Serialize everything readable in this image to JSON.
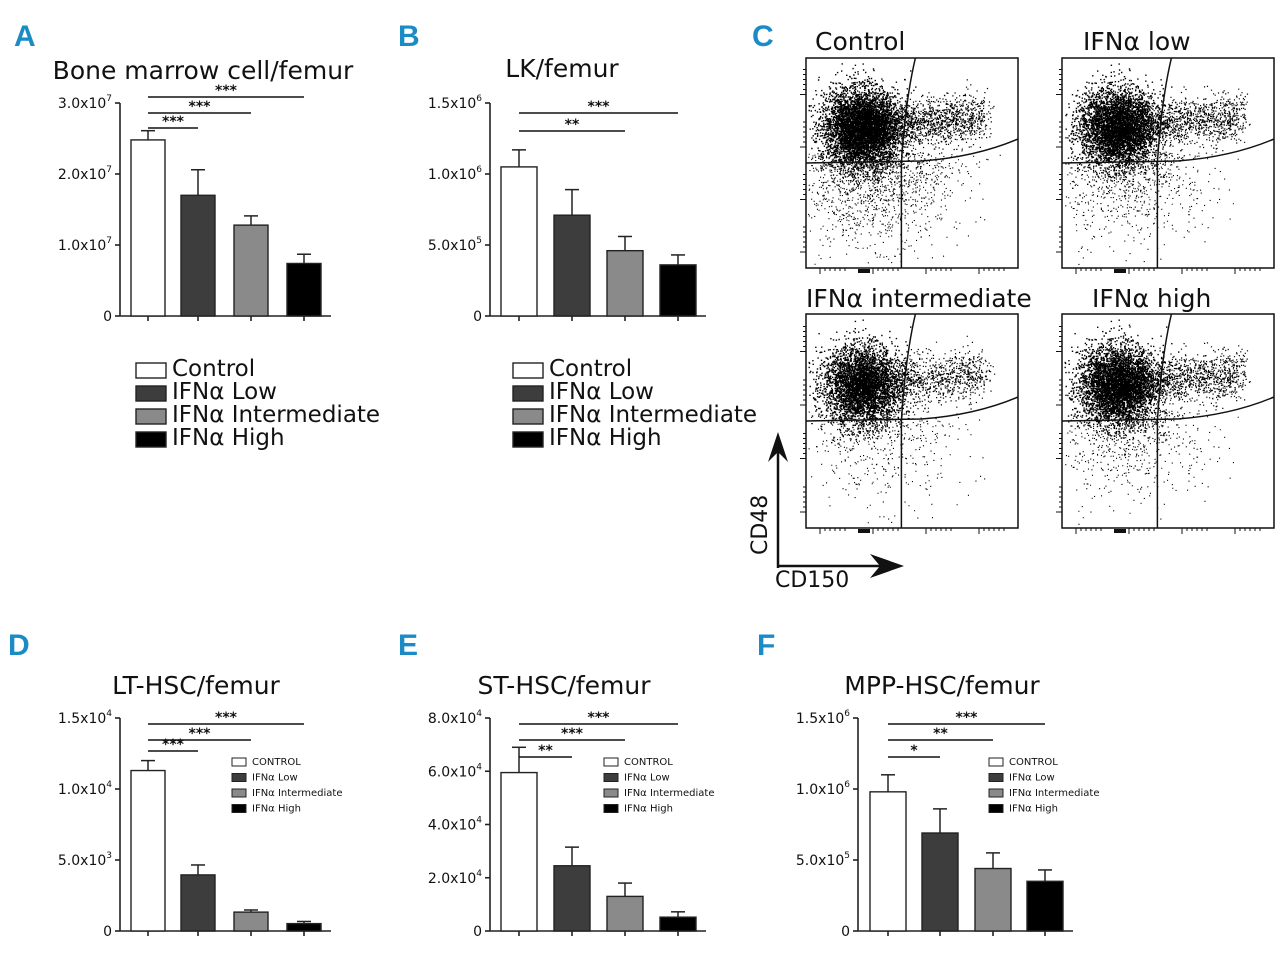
{
  "colors": {
    "control": "#ffffff",
    "low": "#3d3d3d",
    "intermediate": "#8a8a8a",
    "high": "#000000",
    "panel_letter": "#1b8bc6"
  },
  "group_names": [
    "Control",
    "IFNα Low",
    "IFNα Intermediate",
    "IFNα High"
  ],
  "group_names_caps": [
    "CONTROL",
    "IFNα Low",
    "IFNα Intermediate",
    "IFNα High"
  ],
  "facs": {
    "letter": "C",
    "titles": [
      "Control",
      "IFNα low",
      "IFNα intermediate",
      "IFNα high"
    ],
    "y_axis_label": "CD48",
    "x_axis_label": "CD150"
  },
  "chart_data": [
    {
      "id": "A",
      "letter": "A",
      "type": "bar",
      "title": "Bone marrow cell/femur",
      "categories": [
        "Control",
        "IFNα Low",
        "IFNα Intermediate",
        "IFNα High"
      ],
      "values": [
        24800000.0,
        17000000.0,
        12800000.0,
        7400000.0
      ],
      "errors": [
        1300000.0,
        3600000.0,
        1300000.0,
        1300000.0
      ],
      "ylim": [
        0,
        30000000.0
      ],
      "yticks": [
        {
          "v": 0,
          "m": "0",
          "e": ""
        },
        {
          "v": 10000000.0,
          "m": "1.0x10",
          "e": "7"
        },
        {
          "v": 20000000.0,
          "m": "2.0x10",
          "e": "7"
        },
        {
          "v": 30000000.0,
          "m": "3.0x10",
          "e": "7"
        }
      ],
      "significance": [
        {
          "from": 0,
          "to": 1,
          "label": "***"
        },
        {
          "from": 0,
          "to": 2,
          "label": "***"
        },
        {
          "from": 0,
          "to": 3,
          "label": "***"
        }
      ],
      "legend": "below"
    },
    {
      "id": "B",
      "letter": "B",
      "type": "bar",
      "title": "LK/femur",
      "categories": [
        "Control",
        "IFNα Low",
        "IFNα Intermediate",
        "IFNα High"
      ],
      "values": [
        1050000.0,
        710000.0,
        460000.0,
        360000.0
      ],
      "errors": [
        120000.0,
        180000.0,
        100000.0,
        70000.0
      ],
      "ylim": [
        0,
        1500000.0
      ],
      "yticks": [
        {
          "v": 0,
          "m": "0",
          "e": ""
        },
        {
          "v": 500000.0,
          "m": "5.0x10",
          "e": "5"
        },
        {
          "v": 1000000.0,
          "m": "1.0x10",
          "e": "6"
        },
        {
          "v": 1500000.0,
          "m": "1.5x10",
          "e": "6"
        }
      ],
      "significance": [
        {
          "from": 0,
          "to": 2,
          "label": "**"
        },
        {
          "from": 0,
          "to": 3,
          "label": "***"
        }
      ],
      "legend": "below"
    },
    {
      "id": "D",
      "letter": "D",
      "type": "bar",
      "title": "LT-HSC/femur",
      "categories": [
        "CONTROL",
        "IFNα Low",
        "IFNα Intermediate",
        "IFNα High"
      ],
      "values": [
        11300,
        3950,
        1330,
        520
      ],
      "errors": [
        700,
        700,
        150,
        150
      ],
      "ylim": [
        0,
        15000
      ],
      "yticks": [
        {
          "v": 0,
          "m": "0",
          "e": ""
        },
        {
          "v": 5000,
          "m": "5.0x10",
          "e": "3"
        },
        {
          "v": 10000,
          "m": "1.0x10",
          "e": "4"
        },
        {
          "v": 15000,
          "m": "1.5x10",
          "e": "4"
        }
      ],
      "significance": [
        {
          "from": 0,
          "to": 1,
          "label": "***"
        },
        {
          "from": 0,
          "to": 2,
          "label": "***"
        },
        {
          "from": 0,
          "to": 3,
          "label": "***"
        }
      ],
      "legend": "inset"
    },
    {
      "id": "E",
      "letter": "E",
      "type": "bar",
      "title": "ST-HSC/femur",
      "categories": [
        "CONTROL",
        "IFNα Low",
        "IFNα Intermediate",
        "IFNα High"
      ],
      "values": [
        59500,
        24500,
        13000,
        5200
      ],
      "errors": [
        9500,
        7000,
        5000,
        2000
      ],
      "ylim": [
        0,
        80000
      ],
      "yticks": [
        {
          "v": 0,
          "m": "0",
          "e": ""
        },
        {
          "v": 20000,
          "m": "2.0x10",
          "e": "4"
        },
        {
          "v": 40000,
          "m": "4.0x10",
          "e": "4"
        },
        {
          "v": 60000,
          "m": "6.0x10",
          "e": "4"
        },
        {
          "v": 80000,
          "m": "8.0x10",
          "e": "4"
        }
      ],
      "significance": [
        {
          "from": 0,
          "to": 1,
          "label": "**"
        },
        {
          "from": 0,
          "to": 2,
          "label": "***"
        },
        {
          "from": 0,
          "to": 3,
          "label": "***"
        }
      ],
      "legend": "inset"
    },
    {
      "id": "F",
      "letter": "F",
      "type": "bar",
      "title": "MPP-HSC/femur",
      "categories": [
        "CONTROL",
        "IFNα Low",
        "IFNα Intermediate",
        "IFNα High"
      ],
      "values": [
        980000.0,
        690000.0,
        440000.0,
        350000.0
      ],
      "errors": [
        120000.0,
        170000.0,
        110000.0,
        80000.0
      ],
      "ylim": [
        0,
        1500000.0
      ],
      "yticks": [
        {
          "v": 0,
          "m": "0",
          "e": ""
        },
        {
          "v": 500000.0,
          "m": "5.0x10",
          "e": "5"
        },
        {
          "v": 1000000.0,
          "m": "1.0x10",
          "e": "6"
        },
        {
          "v": 1500000.0,
          "m": "1.5x10",
          "e": "6"
        }
      ],
      "significance": [
        {
          "from": 0,
          "to": 1,
          "label": "*"
        },
        {
          "from": 0,
          "to": 2,
          "label": "**"
        },
        {
          "from": 0,
          "to": 3,
          "label": "***"
        }
      ],
      "legend": "inset"
    }
  ]
}
